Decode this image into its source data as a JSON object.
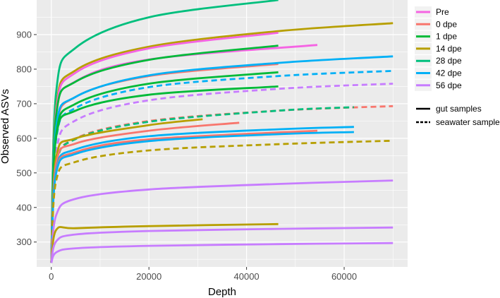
{
  "chart_data": {
    "type": "line",
    "title": "",
    "xlabel": "Depth",
    "ylabel": "Observed ASVs",
    "xlim": [
      -3000,
      73000
    ],
    "ylim": [
      228,
      1000
    ],
    "x_ticks": [
      0,
      20000,
      40000,
      60000
    ],
    "x_tick_labels": [
      "0",
      "20000",
      "40000",
      "60000"
    ],
    "y_ticks": [
      300,
      400,
      500,
      600,
      700,
      800,
      900
    ],
    "y_tick_labels": [
      "300",
      "400",
      "500",
      "600",
      "700",
      "800",
      "900"
    ],
    "grid": true,
    "panel_background": "#ebebeb",
    "grid_color": "#ffffff",
    "legend_position": "right",
    "legend_groups": [
      {
        "name": "Pre",
        "color": "#f564e3"
      },
      {
        "name": "0 dpe",
        "color": "#f8766d"
      },
      {
        "name": "1 dpe",
        "color": "#00ba38"
      },
      {
        "name": "14 dpe",
        "color": "#b79f00"
      },
      {
        "name": "28 dpe",
        "color": "#00bf7d"
      },
      {
        "name": "42 dpe",
        "color": "#00b0f6"
      },
      {
        "name": "56 dpe",
        "color": "#c77cff"
      }
    ],
    "legend_linetypes": [
      {
        "name": "gut samples",
        "dash": "solid"
      },
      {
        "name": "seawater samples",
        "dash": "dashed"
      }
    ],
    "series": [
      {
        "group": "28 dpe",
        "sample": "gut",
        "end_depth": 46500,
        "end_asvs": 1000,
        "points": [
          [
            0,
            240
          ],
          [
            1000,
            735
          ],
          [
            5000,
            862
          ],
          [
            20000,
            950
          ],
          [
            46500,
            1000
          ]
        ]
      },
      {
        "group": "14 dpe",
        "sample": "gut",
        "end_depth": 70000,
        "end_asvs": 933,
        "points": [
          [
            0,
            240
          ],
          [
            1000,
            690
          ],
          [
            5000,
            797
          ],
          [
            20000,
            865
          ],
          [
            46500,
            910
          ],
          [
            70000,
            933
          ]
        ]
      },
      {
        "group": "Pre",
        "sample": "gut",
        "end_depth": 46500,
        "end_asvs": 905,
        "points": [
          [
            0,
            240
          ],
          [
            1000,
            680
          ],
          [
            5000,
            790
          ],
          [
            20000,
            860
          ],
          [
            46500,
            905
          ]
        ]
      },
      {
        "group": "Pre",
        "sample": "gut",
        "end_depth": 54500,
        "end_asvs": 870,
        "points": [
          [
            0,
            240
          ],
          [
            1000,
            668
          ],
          [
            5000,
            765
          ],
          [
            20000,
            828
          ],
          [
            54500,
            870
          ]
        ]
      },
      {
        "group": "1 dpe",
        "sample": "gut",
        "end_depth": 46500,
        "end_asvs": 868,
        "points": [
          [
            0,
            240
          ],
          [
            1000,
            668
          ],
          [
            5000,
            764
          ],
          [
            20000,
            827
          ],
          [
            46500,
            868
          ]
        ]
      },
      {
        "group": "0 dpe",
        "sample": "gut",
        "end_depth": 46500,
        "end_asvs": 815,
        "points": [
          [
            0,
            240
          ],
          [
            1000,
            625
          ],
          [
            5000,
            720
          ],
          [
            20000,
            780
          ],
          [
            46500,
            815
          ]
        ]
      },
      {
        "group": "42 dpe",
        "sample": "gut",
        "end_depth": 70000,
        "end_asvs": 837,
        "points": [
          [
            0,
            240
          ],
          [
            1000,
            633
          ],
          [
            5000,
            720
          ],
          [
            20000,
            782
          ],
          [
            46500,
            818
          ],
          [
            70000,
            837
          ]
        ]
      },
      {
        "group": "1 dpe",
        "sample": "gut",
        "end_depth": 46500,
        "end_asvs": 791,
        "points": [
          [
            0,
            240
          ],
          [
            1000,
            612
          ],
          [
            5000,
            700
          ],
          [
            20000,
            758
          ],
          [
            46500,
            791
          ]
        ]
      },
      {
        "group": "42 dpe",
        "sample": "seawater",
        "end_depth": 70000,
        "end_asvs": 795,
        "points": [
          [
            0,
            240
          ],
          [
            1000,
            598
          ],
          [
            5000,
            688
          ],
          [
            20000,
            748
          ],
          [
            46500,
            780
          ],
          [
            70000,
            795
          ]
        ]
      },
      {
        "group": "56 dpe",
        "sample": "seawater",
        "end_depth": 70000,
        "end_asvs": 758,
        "points": [
          [
            0,
            240
          ],
          [
            1000,
            560
          ],
          [
            5000,
            652
          ],
          [
            20000,
            710
          ],
          [
            46500,
            743
          ],
          [
            70000,
            758
          ]
        ]
      },
      {
        "group": "1 dpe",
        "sample": "gut",
        "end_depth": 46500,
        "end_asvs": 750,
        "points": [
          [
            0,
            240
          ],
          [
            1000,
            605
          ],
          [
            5000,
            680
          ],
          [
            20000,
            726
          ],
          [
            46500,
            750
          ]
        ]
      },
      {
        "group": "0 dpe",
        "sample": "seawater",
        "end_depth": 70000,
        "end_asvs": 693,
        "points": [
          [
            0,
            240
          ],
          [
            1000,
            520
          ],
          [
            5000,
            600
          ],
          [
            20000,
            650
          ],
          [
            46500,
            680
          ],
          [
            70000,
            693
          ]
        ]
      },
      {
        "group": "28 dpe",
        "sample": "seawater",
        "end_depth": 62000,
        "end_asvs": 690,
        "points": [
          [
            0,
            240
          ],
          [
            1000,
            520
          ],
          [
            5000,
            598
          ],
          [
            20000,
            648
          ],
          [
            46500,
            680
          ],
          [
            62000,
            690
          ]
        ]
      },
      {
        "group": "14 dpe",
        "sample": "gut",
        "end_depth": 31000,
        "end_asvs": 655,
        "points": [
          [
            0,
            240
          ],
          [
            1000,
            545
          ],
          [
            5000,
            600
          ],
          [
            20000,
            638
          ],
          [
            31000,
            655
          ]
        ]
      },
      {
        "group": "0 dpe",
        "sample": "gut",
        "end_depth": 38500,
        "end_asvs": 645,
        "points": [
          [
            0,
            240
          ],
          [
            1000,
            528
          ],
          [
            5000,
            585
          ],
          [
            20000,
            622
          ],
          [
            38500,
            645
          ]
        ]
      },
      {
        "group": "42 dpe",
        "sample": "gut",
        "end_depth": 62000,
        "end_asvs": 633,
        "points": [
          [
            0,
            240
          ],
          [
            1000,
            510
          ],
          [
            5000,
            568
          ],
          [
            20000,
            606
          ],
          [
            46500,
            626
          ],
          [
            62000,
            633
          ]
        ]
      },
      {
        "group": "0 dpe",
        "sample": "gut",
        "end_depth": 54500,
        "end_asvs": 622,
        "points": [
          [
            0,
            240
          ],
          [
            1000,
            505
          ],
          [
            5000,
            560
          ],
          [
            20000,
            597
          ],
          [
            54500,
            622
          ]
        ]
      },
      {
        "group": "42 dpe",
        "sample": "gut",
        "end_depth": 62000,
        "end_asvs": 618,
        "points": [
          [
            0,
            240
          ],
          [
            1000,
            500
          ],
          [
            5000,
            555
          ],
          [
            20000,
            592
          ],
          [
            46500,
            612
          ],
          [
            62000,
            618
          ]
        ]
      },
      {
        "group": "14 dpe",
        "sample": "seawater",
        "end_depth": 70000,
        "end_asvs": 593,
        "points": [
          [
            0,
            240
          ],
          [
            1000,
            478
          ],
          [
            5000,
            532
          ],
          [
            20000,
            565
          ],
          [
            46500,
            583
          ],
          [
            70000,
            593
          ]
        ]
      },
      {
        "group": "56 dpe",
        "sample": "gut",
        "end_depth": 70000,
        "end_asvs": 478,
        "points": [
          [
            0,
            240
          ],
          [
            1000,
            378
          ],
          [
            5000,
            425
          ],
          [
            20000,
            452
          ],
          [
            46500,
            468
          ],
          [
            70000,
            478
          ]
        ]
      },
      {
        "group": "14 dpe",
        "sample": "gut",
        "end_depth": 46500,
        "end_asvs": 352,
        "points": [
          [
            0,
            240
          ],
          [
            1000,
            335
          ],
          [
            5000,
            340
          ],
          [
            20000,
            346
          ],
          [
            46500,
            352
          ]
        ]
      },
      {
        "group": "56 dpe",
        "sample": "gut",
        "end_depth": 70000,
        "end_asvs": 342,
        "points": [
          [
            0,
            240
          ],
          [
            1000,
            302
          ],
          [
            5000,
            322
          ],
          [
            20000,
            332
          ],
          [
            46500,
            338
          ],
          [
            70000,
            342
          ]
        ]
      },
      {
        "group": "56 dpe",
        "sample": "gut",
        "end_depth": 70000,
        "end_asvs": 297,
        "points": [
          [
            0,
            240
          ],
          [
            1000,
            270
          ],
          [
            5000,
            282
          ],
          [
            20000,
            289
          ],
          [
            46500,
            294
          ],
          [
            70000,
            297
          ]
        ]
      }
    ]
  }
}
